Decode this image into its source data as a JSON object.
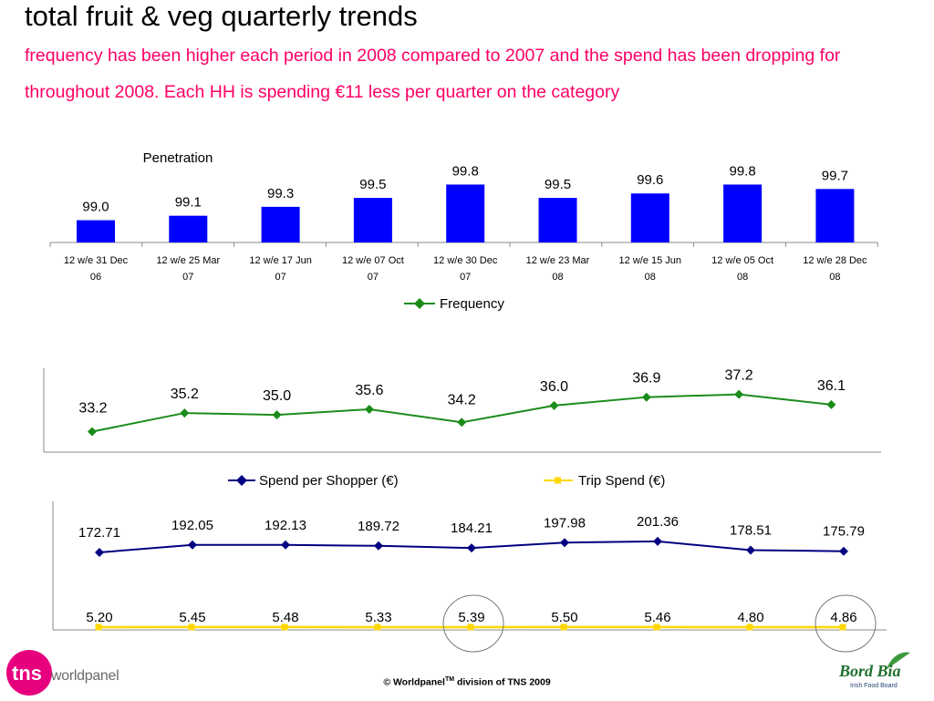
{
  "title": "total fruit & veg quarterly trends",
  "subtitle": "frequency has been higher each period in 2008 compared to 2007 and the spend has been dropping for throughout 2008.  Each HH is spending €11 less per quarter on the category",
  "colors": {
    "subtitle": "#ff0066",
    "penetration_bar": "#0000ff",
    "frequency_line": "#1a8c1a",
    "spend_per_shopper_line": "#000080",
    "trip_spend_line": "#ffd700"
  },
  "footer": {
    "copyright_prefix": "© Worldpanel",
    "trademark": "TM",
    "copyright_suffix": " division of TNS 2009",
    "tns_logo_text": "tns",
    "tns_worldpanel": "worldpanel",
    "bordbia_name": "Bord Bia",
    "bordbia_sub": "Irish Food Board"
  },
  "chart_data": [
    {
      "type": "bar",
      "title": "Penetration",
      "categories": [
        [
          "12 w/e 31 Dec",
          "06"
        ],
        [
          "12 w/e 25 Mar",
          "07"
        ],
        [
          "12 w/e 17 Jun",
          "07"
        ],
        [
          "12 w/e 07 Oct",
          "07"
        ],
        [
          "12 w/e 30 Dec",
          "07"
        ],
        [
          "12 w/e 23 Mar",
          "08"
        ],
        [
          "12 w/e 15 Jun",
          "08"
        ],
        [
          "12 w/e 05 Oct",
          "08"
        ],
        [
          "12 w/e 28 Dec",
          "08"
        ]
      ],
      "values": [
        99.0,
        99.1,
        99.3,
        99.5,
        99.8,
        99.5,
        99.6,
        99.8,
        99.7
      ],
      "labels": [
        "99.0",
        "99.1",
        "99.3",
        "99.5",
        "99.8",
        "99.5",
        "99.6",
        "99.8",
        "99.7"
      ],
      "ylim": [
        98.5,
        99.85
      ],
      "grid": false
    },
    {
      "type": "line",
      "series": [
        {
          "name": "Frequency",
          "values": [
            33.2,
            35.2,
            35.0,
            35.6,
            34.2,
            36.0,
            36.9,
            37.2,
            36.1
          ],
          "labels": [
            "33.2",
            "35.2",
            "35.0",
            "35.6",
            "34.2",
            "36.0",
            "36.9",
            "37.2",
            "36.1"
          ],
          "marker": "diamond"
        }
      ],
      "legend": "top-center",
      "ylim": [
        31.0,
        40.0
      ],
      "grid": false
    },
    {
      "type": "line",
      "series": [
        {
          "name": "Spend per Shopper (€)",
          "values": [
            172.71,
            192.05,
            192.13,
            189.72,
            184.21,
            197.98,
            201.36,
            178.51,
            175.79
          ],
          "labels": [
            "172.71",
            "192.05",
            "192.13",
            "189.72",
            "184.21",
            "197.98",
            "201.36",
            "178.51",
            "175.79"
          ],
          "marker": "diamond"
        },
        {
          "name": "Trip Spend (€)",
          "values": [
            5.2,
            5.45,
            5.48,
            5.33,
            5.39,
            5.5,
            5.46,
            4.8,
            4.86
          ],
          "labels": [
            "5.20",
            "5.45",
            "5.48",
            "5.33",
            "5.39",
            "5.50",
            "5.46",
            "4.80",
            "4.86"
          ],
          "marker": "square",
          "circled_indices": [
            4,
            8
          ]
        }
      ],
      "legend": "top-center",
      "grid": false
    }
  ]
}
